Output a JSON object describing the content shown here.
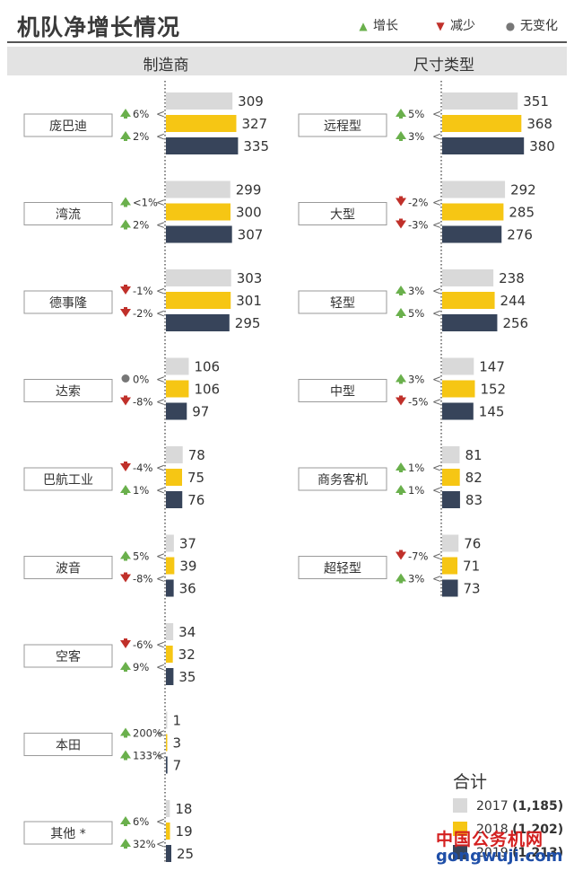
{
  "title": "机队净增长情况",
  "legend": [
    {
      "label": "增长",
      "icon": "up-arrow-icon",
      "color": "#6ab04c"
    },
    {
      "label": "减少",
      "icon": "down-arrow-icon",
      "color": "#c0302a"
    },
    {
      "label": "无变化",
      "icon": "dot-icon",
      "color": "#777777"
    }
  ],
  "colors": {
    "2017": "#d9d9d9",
    "2018": "#f6c614",
    "2019": "#37445a",
    "up": "#6ab04c",
    "down": "#c0302a",
    "same": "#777777"
  },
  "chart_data": [
    {
      "type": "bar",
      "title": "制造商",
      "years": [
        "2017",
        "2018",
        "2019"
      ],
      "categories": [
        {
          "name": "庞巴迪",
          "values": [
            309,
            327,
            335
          ],
          "changes": [
            {
              "dir": "up",
              "text": "6%"
            },
            {
              "dir": "up",
              "text": "2%"
            }
          ]
        },
        {
          "name": "湾流",
          "values": [
            299,
            300,
            307
          ],
          "changes": [
            {
              "dir": "up",
              "text": "<1%"
            },
            {
              "dir": "up",
              "text": "2%"
            }
          ]
        },
        {
          "name": "德事隆",
          "values": [
            303,
            301,
            295
          ],
          "changes": [
            {
              "dir": "down",
              "text": "-1%"
            },
            {
              "dir": "down",
              "text": "-2%"
            }
          ]
        },
        {
          "name": "达索",
          "values": [
            106,
            106,
            97
          ],
          "changes": [
            {
              "dir": "same",
              "text": "0%"
            },
            {
              "dir": "down",
              "text": "-8%"
            }
          ]
        },
        {
          "name": "巴航工业",
          "values": [
            78,
            75,
            76
          ],
          "changes": [
            {
              "dir": "down",
              "text": "-4%"
            },
            {
              "dir": "up",
              "text": "1%"
            }
          ]
        },
        {
          "name": "波音",
          "values": [
            37,
            39,
            36
          ],
          "changes": [
            {
              "dir": "up",
              "text": "5%"
            },
            {
              "dir": "down",
              "text": "-8%"
            }
          ]
        },
        {
          "name": "空客",
          "values": [
            34,
            32,
            35
          ],
          "changes": [
            {
              "dir": "down",
              "text": "-6%"
            },
            {
              "dir": "up",
              "text": "9%"
            }
          ]
        },
        {
          "name": "本田",
          "values": [
            1,
            3,
            7
          ],
          "changes": [
            {
              "dir": "up",
              "text": "200%"
            },
            {
              "dir": "up",
              "text": "133%"
            }
          ]
        },
        {
          "name": "其他 *",
          "values": [
            18,
            19,
            25
          ],
          "changes": [
            {
              "dir": "up",
              "text": "6%"
            },
            {
              "dir": "up",
              "text": "32%"
            }
          ]
        }
      ]
    },
    {
      "type": "bar",
      "title": "尺寸类型",
      "years": [
        "2017",
        "2018",
        "2019"
      ],
      "categories": [
        {
          "name": "远程型",
          "values": [
            351,
            368,
            380
          ],
          "changes": [
            {
              "dir": "up",
              "text": "5%"
            },
            {
              "dir": "up",
              "text": "3%"
            }
          ]
        },
        {
          "name": "大型",
          "values": [
            292,
            285,
            276
          ],
          "changes": [
            {
              "dir": "down",
              "text": "-2%"
            },
            {
              "dir": "down",
              "text": "-3%"
            }
          ]
        },
        {
          "name": "轻型",
          "values": [
            238,
            244,
            256
          ],
          "changes": [
            {
              "dir": "up",
              "text": "3%"
            },
            {
              "dir": "up",
              "text": "5%"
            }
          ]
        },
        {
          "name": "中型",
          "values": [
            147,
            152,
            145
          ],
          "changes": [
            {
              "dir": "up",
              "text": "3%"
            },
            {
              "dir": "down",
              "text": "-5%"
            }
          ]
        },
        {
          "name": "商务客机",
          "values": [
            81,
            82,
            83
          ],
          "changes": [
            {
              "dir": "up",
              "text": "1%"
            },
            {
              "dir": "up",
              "text": "1%"
            }
          ]
        },
        {
          "name": "超轻型",
          "values": [
            76,
            71,
            73
          ],
          "changes": [
            {
              "dir": "down",
              "text": "-7%"
            },
            {
              "dir": "up",
              "text": "3%"
            }
          ]
        }
      ]
    }
  ],
  "totals": {
    "title": "合计",
    "items": [
      {
        "year": "2017",
        "value": "(1,185)"
      },
      {
        "year": "2018",
        "value": "(1,202)"
      },
      {
        "year": "2019",
        "value": "(1,213)"
      }
    ]
  },
  "watermark": {
    "line1": "中国公务机网",
    "line2": "gongwuji.com"
  }
}
